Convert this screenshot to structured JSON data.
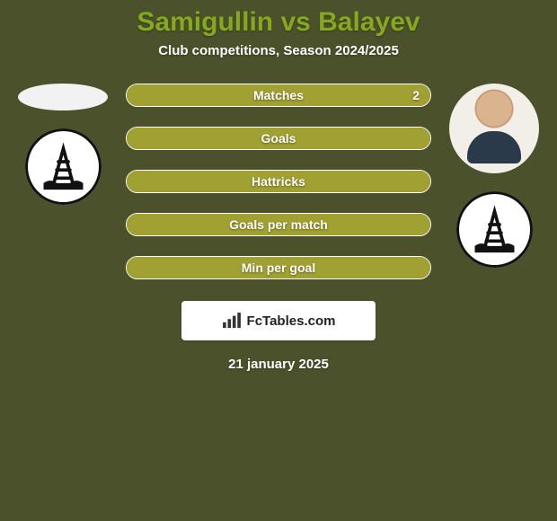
{
  "colors": {
    "background": "#4b512b",
    "title": "#86a81f",
    "subtitle": "#ffffff",
    "bar_fill": "#a1a032",
    "bar_empty_alpha": "rgba(255,255,255,0)",
    "date": "#ffffff"
  },
  "title": {
    "text": "Samigullin vs Balayev",
    "fontsize": 30
  },
  "subtitle": {
    "text": "Club competitions, Season 2024/2025",
    "fontsize": 15
  },
  "stats": [
    {
      "label": "Matches",
      "left_value": "",
      "right_value": "2",
      "left_pct": 0,
      "right_pct": 100
    },
    {
      "label": "Goals",
      "left_value": "",
      "right_value": "",
      "left_pct": 100,
      "right_pct": 0
    },
    {
      "label": "Hattricks",
      "left_value": "",
      "right_value": "",
      "left_pct": 100,
      "right_pct": 0
    },
    {
      "label": "Goals per match",
      "left_value": "",
      "right_value": "",
      "left_pct": 100,
      "right_pct": 0
    },
    {
      "label": "Min per goal",
      "left_value": "",
      "right_value": "",
      "left_pct": 100,
      "right_pct": 0
    }
  ],
  "stat_label_fontsize": 14,
  "branding": {
    "text": "FcTables.com"
  },
  "date": {
    "text": "21 january 2025",
    "fontsize": 15
  },
  "left": {
    "player_name": "Samigullin",
    "club_name": "Neftchi"
  },
  "right": {
    "player_name": "Balayev",
    "club_name": "Neftchi"
  }
}
